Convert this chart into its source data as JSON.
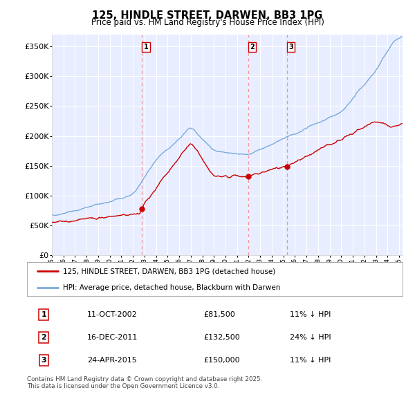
{
  "title": "125, HINDLE STREET, DARWEN, BB3 1PG",
  "subtitle": "Price paid vs. HM Land Registry's House Price Index (HPI)",
  "red_label": "125, HINDLE STREET, DARWEN, BB3 1PG (detached house)",
  "blue_label": "HPI: Average price, detached house, Blackburn with Darwen",
  "sale_points": [
    {
      "num": 1,
      "date_label": "11-OCT-2002",
      "price": 81500,
      "pct": "11%",
      "x_year": 2002.78
    },
    {
      "num": 2,
      "date_label": "16-DEC-2011",
      "price": 132500,
      "pct": "24%",
      "x_year": 2011.96
    },
    {
      "num": 3,
      "date_label": "24-APR-2015",
      "price": 150000,
      "pct": "11%",
      "x_year": 2015.3
    }
  ],
  "footnote": "Contains HM Land Registry data © Crown copyright and database right 2025.\nThis data is licensed under the Open Government Licence v3.0.",
  "table_rows": [
    [
      "1",
      "11-OCT-2002",
      "£81,500",
      "11% ↓ HPI"
    ],
    [
      "2",
      "16-DEC-2011",
      "£132,500",
      "24% ↓ HPI"
    ],
    [
      "3",
      "24-APR-2015",
      "£150,000",
      "11% ↓ HPI"
    ]
  ],
  "bg_color": "#e8eeff",
  "grid_color": "#ffffff",
  "red_color": "#cc0000",
  "blue_color": "#7aaadd",
  "dashed_color": "#ee8888",
  "ylim": [
    0,
    370000
  ],
  "xlim": [
    1995,
    2025.3
  ]
}
